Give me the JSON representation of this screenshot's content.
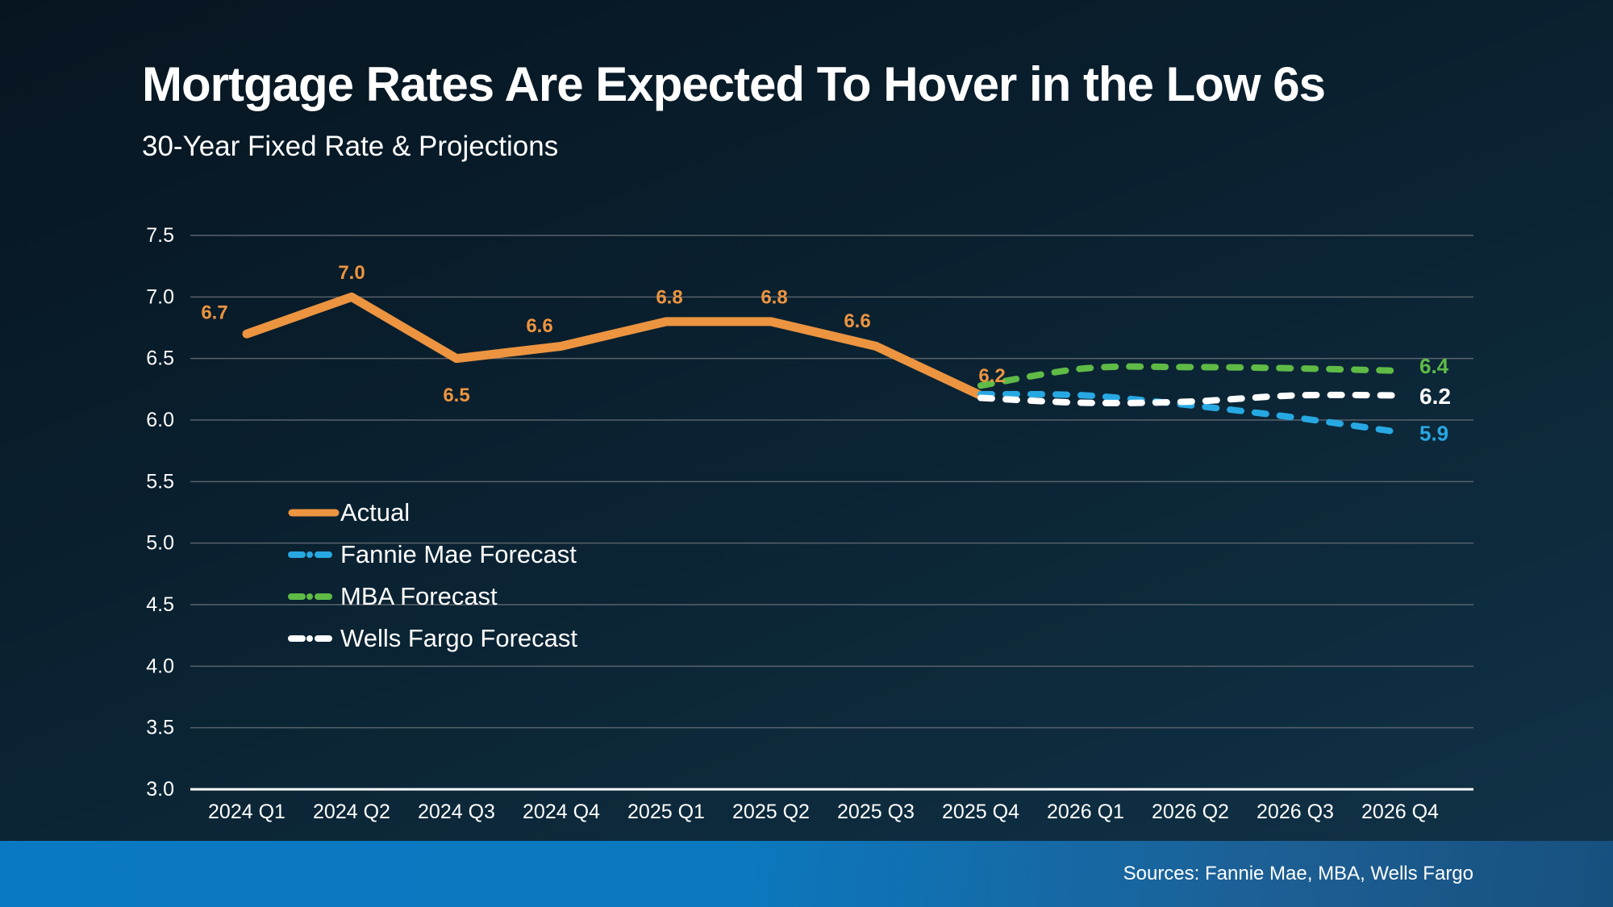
{
  "header": {
    "title": "Mortgage Rates Are Expected To Hover in the Low 6s",
    "subtitle": "30-Year Fixed Rate & Projections"
  },
  "footer": {
    "sources": "Sources: Fannie Mae, MBA, Wells Fargo"
  },
  "chart_data": {
    "type": "line",
    "title": "Mortgage Rates Are Expected To Hover in the Low 6s",
    "subtitle": "30-Year Fixed Rate & Projections",
    "categories": [
      "2024 Q1",
      "2024 Q2",
      "2024 Q3",
      "2024 Q4",
      "2025 Q1",
      "2025 Q2",
      "2025 Q3",
      "2025 Q4",
      "2026 Q1",
      "2026 Q2",
      "2026 Q3",
      "2026 Q4"
    ],
    "y_axis": {
      "min": 3.0,
      "max": 7.5,
      "step": 0.5,
      "tick_labels": [
        "7.5",
        "7.0",
        "6.5",
        "6.0",
        "5.5",
        "5.0",
        "4.5",
        "4.0",
        "3.5",
        "3.0"
      ]
    },
    "grid": true,
    "legend_position": "middle-left",
    "series": [
      {
        "name": "Actual",
        "color": "#EC9440",
        "style": "solid",
        "start_index": 0,
        "values": [
          6.7,
          7.0,
          6.5,
          6.6,
          6.8,
          6.8,
          6.6,
          6.2
        ],
        "point_labels": [
          "6.7",
          "7.0",
          "6.5",
          "6.6",
          "6.8",
          "6.8",
          "6.6",
          "6.2"
        ]
      },
      {
        "name": "MBA Forecast",
        "color": "#5FBB46",
        "style": "dashed",
        "start_index": 7,
        "values": [
          6.28,
          6.42,
          6.43,
          6.42,
          6.4
        ],
        "end_label": "6.4"
      },
      {
        "name": "Fannie Mae Forecast",
        "color": "#27A8E2",
        "style": "dashed",
        "start_index": 7,
        "values": [
          6.21,
          6.2,
          6.12,
          6.02,
          5.9
        ],
        "end_label": "5.9"
      },
      {
        "name": "Wells Fargo Forecast",
        "color": "#FFFFFF",
        "style": "dashed",
        "start_index": 7,
        "values": [
          6.18,
          6.14,
          6.15,
          6.2,
          6.2
        ],
        "end_label": "6.2"
      }
    ],
    "legend": [
      "Actual",
      "Fannie Mae Forecast",
      "MBA Forecast",
      "Wells Fargo Forecast"
    ]
  },
  "colors": {
    "background_top": "#071621",
    "background_bottom": "#113349",
    "gridline": "#59626B",
    "axis_line": "#FFFFFF",
    "footer_bar_left": "#0979C3",
    "footer_bar_right": "#16507F"
  }
}
